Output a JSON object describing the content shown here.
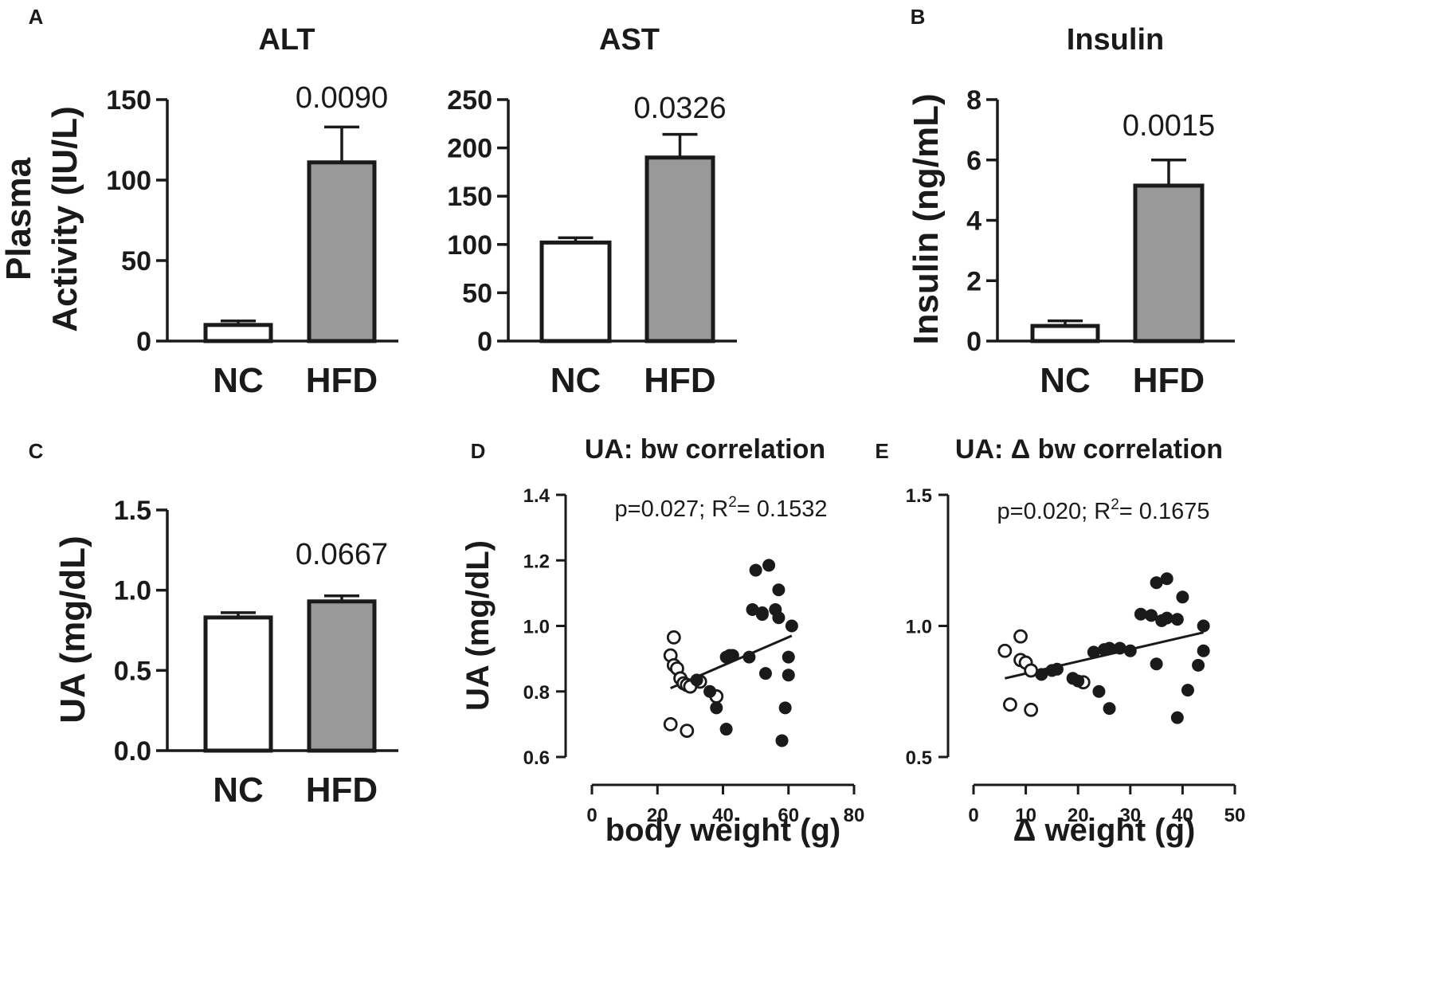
{
  "chart_data": [
    {
      "id": "alt",
      "panel": "A",
      "type": "bar",
      "title": "ALT",
      "ylabel": [
        "Plasma",
        "Activity (IU/L)"
      ],
      "categories": [
        "NC",
        "HFD"
      ],
      "values": [
        10,
        111
      ],
      "errors": [
        2.5,
        22
      ],
      "ylim": [
        0,
        150
      ],
      "yticks": [
        0,
        50,
        100,
        150
      ],
      "pvalue": "0.0090"
    },
    {
      "id": "ast",
      "type": "bar",
      "title": "AST",
      "ylabel": "",
      "categories": [
        "NC",
        "HFD"
      ],
      "values": [
        102,
        190
      ],
      "errors": [
        5,
        24
      ],
      "ylim": [
        0,
        250
      ],
      "yticks": [
        0,
        50,
        100,
        150,
        200,
        250
      ],
      "pvalue": "0.0326"
    },
    {
      "id": "insulin",
      "panel": "B",
      "type": "bar",
      "title": "Insulin",
      "ylabel": "Insulin (ng/mL)",
      "categories": [
        "NC",
        "HFD"
      ],
      "values": [
        0.5,
        5.15
      ],
      "errors": [
        0.17,
        0.85
      ],
      "ylim": [
        0,
        8
      ],
      "yticks": [
        0,
        2,
        4,
        6,
        8
      ],
      "pvalue": "0.0015"
    },
    {
      "id": "ua",
      "panel": "C",
      "type": "bar",
      "title": "",
      "ylabel": "UA (mg/dL)",
      "categories": [
        "NC",
        "HFD"
      ],
      "values": [
        0.83,
        0.93
      ],
      "errors": [
        0.03,
        0.035
      ],
      "ylim": [
        0,
        1.5
      ],
      "yticks": [
        "0.0",
        "0.5",
        "1.0",
        "1.5"
      ],
      "pvalue": "0.0667"
    },
    {
      "id": "bw",
      "panel": "D",
      "type": "scatter",
      "title": "UA: bw correlation",
      "xlabel": "body weight  (g)",
      "ylabel": "UA (mg/dL)",
      "xlim": [
        0,
        80
      ],
      "ylim": [
        0.6,
        1.4
      ],
      "xticks": [
        "0",
        "20",
        "40",
        "60",
        "80"
      ],
      "yticks": [
        "0.6",
        "0.8",
        "1.0",
        "1.2",
        "1.4"
      ],
      "stats": {
        "p": "p=0.027; R",
        "sup": "2",
        "r2": "= 0.1532"
      },
      "regression": {
        "x1": 24,
        "y1": 0.81,
        "x2": 61,
        "y2": 0.97
      },
      "series": [
        {
          "name": "NC",
          "fill": "open",
          "points": [
            [
              25,
              0.965
            ],
            [
              24,
              0.91
            ],
            [
              25,
              0.88
            ],
            [
              26,
              0.87
            ],
            [
              27,
              0.84
            ],
            [
              28,
              0.825
            ],
            [
              29,
              0.82
            ],
            [
              30,
              0.815
            ],
            [
              33,
              0.83
            ],
            [
              38,
              0.785
            ],
            [
              24,
              0.7
            ],
            [
              29,
              0.68
            ]
          ]
        },
        {
          "name": "HFD",
          "fill": "filled",
          "points": [
            [
              32,
              0.835
            ],
            [
              36,
              0.8
            ],
            [
              38,
              0.75
            ],
            [
              41,
              0.685
            ],
            [
              41,
              0.905
            ],
            [
              42,
              0.91
            ],
            [
              43,
              0.91
            ],
            [
              48,
              0.905
            ],
            [
              49,
              1.05
            ],
            [
              50,
              1.17
            ],
            [
              52,
              1.035
            ],
            [
              52,
              1.04
            ],
            [
              53,
              0.855
            ],
            [
              54,
              1.185
            ],
            [
              56,
              1.05
            ],
            [
              57,
              1.11
            ],
            [
              57,
              1.025
            ],
            [
              58,
              0.65
            ],
            [
              59,
              0.75
            ],
            [
              60,
              0.85
            ],
            [
              60,
              0.905
            ],
            [
              61,
              1.0
            ]
          ]
        }
      ]
    },
    {
      "id": "dbw",
      "panel": "E",
      "type": "scatter",
      "title": "UA: Δ bw correlation",
      "xlabel": "Δ weight  (g)",
      "ylabel": "",
      "xlim": [
        0,
        50
      ],
      "ylim": [
        0.5,
        1.5
      ],
      "xticks": [
        "0",
        "10",
        "20",
        "30",
        "40",
        "50"
      ],
      "yticks": [
        "0.5",
        "1.0",
        "1.5"
      ],
      "stats": {
        "p": "p=0.020; R",
        "sup": "2",
        "r2": "= 0.1675"
      },
      "regression": {
        "x1": 6,
        "y1": 0.8,
        "x2": 44,
        "y2": 0.975
      },
      "series": [
        {
          "name": "NC",
          "fill": "open",
          "points": [
            [
              6,
              0.905
            ],
            [
              9,
              0.96
            ],
            [
              9,
              0.87
            ],
            [
              10,
              0.86
            ],
            [
              11,
              0.83
            ],
            [
              7,
              0.7
            ],
            [
              11,
              0.68
            ],
            [
              21,
              0.785
            ]
          ]
        },
        {
          "name": "HFD",
          "fill": "filled",
          "points": [
            [
              13,
              0.815
            ],
            [
              15,
              0.83
            ],
            [
              16,
              0.835
            ],
            [
              19,
              0.8
            ],
            [
              20,
              0.79
            ],
            [
              23,
              0.9
            ],
            [
              24,
              0.75
            ],
            [
              25,
              0.91
            ],
            [
              26,
              0.915
            ],
            [
              26,
              0.685
            ],
            [
              28,
              0.915
            ],
            [
              30,
              0.905
            ],
            [
              32,
              1.045
            ],
            [
              34,
              1.04
            ],
            [
              35,
              0.855
            ],
            [
              35,
              1.165
            ],
            [
              36,
              1.02
            ],
            [
              37,
              1.18
            ],
            [
              37,
              1.03
            ],
            [
              39,
              1.025
            ],
            [
              39,
              0.65
            ],
            [
              40,
              1.11
            ],
            [
              41,
              0.755
            ],
            [
              43,
              0.85
            ],
            [
              44,
              0.905
            ],
            [
              44,
              1.0
            ]
          ]
        }
      ]
    }
  ],
  "colors": {
    "axis": "#1a1a1a",
    "nc_fill": "#ffffff",
    "hfd_fill": "#999999",
    "point": "#1a1a1a"
  }
}
